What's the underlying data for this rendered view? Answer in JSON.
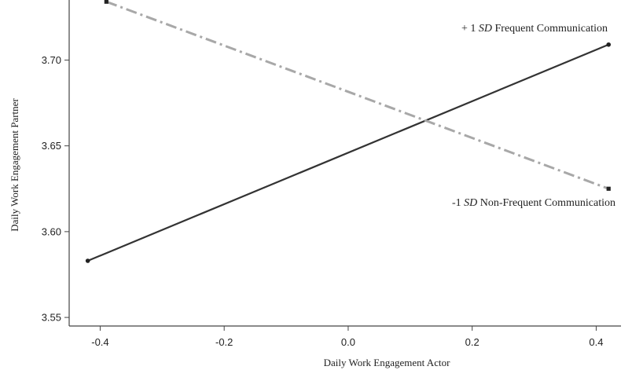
{
  "chart_data": {
    "type": "line",
    "title": "",
    "xlabel": "Daily Work Engagement Actor",
    "ylabel": "Daily Work Engagement Partner",
    "xlim": [
      -0.45,
      0.44
    ],
    "ylim": [
      3.545,
      3.735
    ],
    "x_ticks": [
      -0.4,
      -0.2,
      0.0,
      0.2,
      0.4
    ],
    "x_tick_labels": [
      "-0.4",
      "-0.2",
      "0.0",
      "0.2",
      "0.4"
    ],
    "y_ticks": [
      3.55,
      3.6,
      3.65,
      3.7
    ],
    "y_tick_labels": [
      "3.55",
      "3.60",
      "3.65",
      "3.70"
    ],
    "grid": false,
    "series": [
      {
        "x": [
          -0.42,
          0.42
        ],
        "y": [
          3.583,
          3.709
        ],
        "color": "#333333",
        "style": "solid"
      },
      {
        "x": [
          -0.39,
          0.42
        ],
        "y": [
          3.734,
          3.625
        ],
        "color": "#a8a8a8",
        "style": "dash-dot"
      }
    ],
    "annotations": [
      {
        "prefix": "+ 1 ",
        "italic": "SD",
        "suffix": " Frequent Communication"
      },
      {
        "prefix": "-1 ",
        "italic": "SD",
        "suffix": " Non-Frequent Communication"
      }
    ]
  }
}
